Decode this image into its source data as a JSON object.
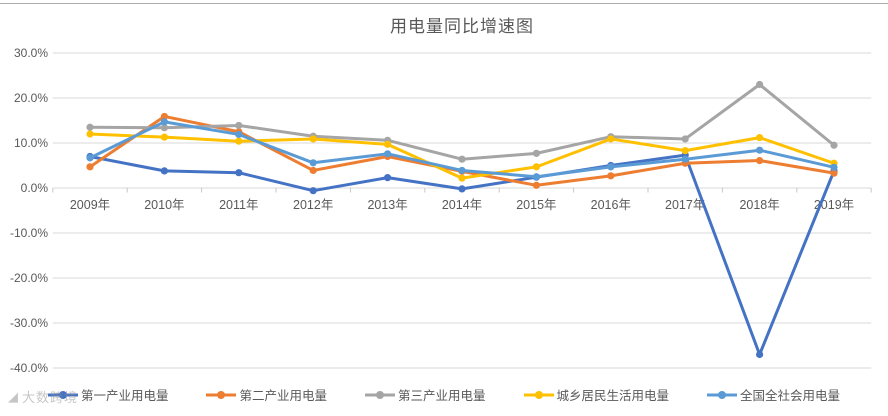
{
  "page": {
    "watermark": {
      "logo_glyph": "◢",
      "text": "大数跨境"
    }
  },
  "style": {
    "text_color": "#595959",
    "grid_color": "#D9D9D9",
    "axis_color": "#C6C6C6",
    "divider_color": "#ADADAD",
    "background": "#FFFFFF"
  },
  "chart_data": {
    "type": "line",
    "title": "用电量同比增速图",
    "xlabel": "",
    "ylabel": "",
    "unit": "percent",
    "grid": true,
    "legend_position": "bottom",
    "ylim": [
      -40,
      30
    ],
    "y_ticks": [
      30,
      20,
      10,
      0,
      -10,
      -20,
      -30,
      -40
    ],
    "y_tick_labels": [
      "30.0%",
      "20.0%",
      "10.0%",
      "0.0%",
      "-10.0%",
      "-20.0%",
      "-30.0%",
      "-40.0%"
    ],
    "categories": [
      "2009年",
      "2010年",
      "2011年",
      "2012年",
      "2013年",
      "2014年",
      "2015年",
      "2016年",
      "2017年",
      "2018年",
      "2019年"
    ],
    "series": [
      {
        "name": "第一产业用电量",
        "color": "#4472C4",
        "values": [
          7.0,
          3.8,
          3.4,
          -0.6,
          2.3,
          -0.2,
          2.4,
          5.0,
          7.3,
          -37.0,
          3.8
        ]
      },
      {
        "name": "第二产业用电量",
        "color": "#ED7D31",
        "values": [
          4.7,
          15.9,
          12.5,
          3.9,
          7.0,
          3.7,
          0.6,
          2.7,
          5.5,
          6.1,
          3.3
        ]
      },
      {
        "name": "第三产业用电量",
        "color": "#A5A5A5",
        "values": [
          13.5,
          13.4,
          13.9,
          11.5,
          10.6,
          6.4,
          7.7,
          11.4,
          10.9,
          23.0,
          9.5
        ]
      },
      {
        "name": "城乡居民生活用电量",
        "color": "#FFC000",
        "values": [
          12.0,
          11.3,
          10.4,
          10.9,
          9.7,
          2.2,
          4.7,
          10.9,
          8.3,
          11.2,
          5.5
        ]
      },
      {
        "name": "全国全社会用电量",
        "color": "#5B9BD5",
        "values": [
          6.7,
          14.7,
          11.9,
          5.6,
          7.6,
          3.9,
          2.5,
          4.7,
          6.4,
          8.4,
          4.6
        ]
      }
    ]
  }
}
